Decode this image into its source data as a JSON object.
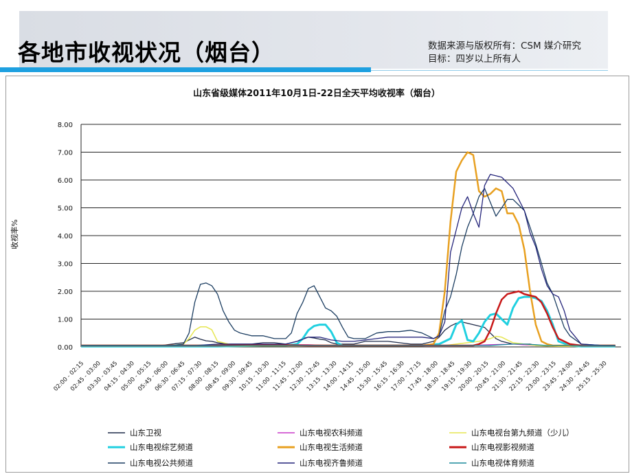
{
  "slide": {
    "title": "各地市收视状况（烟台）",
    "source_line1": "数据来源与版权所有：CSM 媒介研究",
    "source_line2": "目标：四岁以上所有人"
  },
  "chart_data": {
    "type": "line",
    "title": "山东省级媒体2011年10月1日-22日全天平均收视率（烟台）",
    "xlabel": "",
    "ylabel": "收视率%",
    "ylim": [
      0,
      8
    ],
    "yticks": [
      "0.00",
      "1.00",
      "2.00",
      "3.00",
      "4.00",
      "5.00",
      "6.00",
      "7.00",
      "8.00"
    ],
    "grid": true,
    "legend_position": "bottom",
    "categories": [
      "02:00 - 02:15",
      "02:45 - 03:00",
      "03:30 - 03:45",
      "04:15 - 04:30",
      "05:00 - 05:15",
      "05:45 - 06:00",
      "06:30 - 06:45",
      "07:15 - 07:30",
      "08:00 - 08:15",
      "08:45 - 09:00",
      "09:30 - 09:45",
      "10:15 - 10:30",
      "11:00 - 11:15",
      "11:45 - 12:00",
      "12:30 - 12:45",
      "13:15 - 13:30",
      "14:00 - 14:15",
      "14:45 - 15:00",
      "15:30 - 15:45",
      "16:15 - 16:30",
      "17:00 - 17:15",
      "17:45 - 18:00",
      "18:30 - 18:45",
      "19:15 - 19:30",
      "20:00 - 20:15",
      "20:45 - 21:00",
      "21:30 - 21:45",
      "22:15 - 22:30",
      "23:00 - 23:15",
      "23:45 - 24:00",
      "24:30 - 24:45",
      "25:15 - 25:30"
    ],
    "x_range_hours": [
      2.0,
      25.75
    ],
    "series": [
      {
        "name": "山东卫视",
        "color": "#1e2a48",
        "width": 1.3,
        "x": [
          2,
          2.5,
          3,
          3.5,
          4,
          4.5,
          5,
          5.5,
          6,
          6.5,
          6.75,
          7.0,
          7.25,
          7.5,
          7.75,
          8.0,
          8.25,
          8.5,
          8.75,
          9,
          9.5,
          10,
          10.5,
          11,
          11.5,
          11.75,
          12.0,
          12.25,
          12.5,
          12.75,
          13,
          13.25,
          13.5,
          14,
          14.5,
          15,
          15.5,
          16,
          16.5,
          17,
          17.5,
          17.75,
          18,
          18.25,
          18.5,
          18.75,
          19,
          19.25,
          19.5,
          19.75,
          20,
          20.25,
          20.5,
          20.75,
          21,
          21.25,
          21.5,
          21.75,
          22,
          22.25,
          22.5,
          22.75,
          23,
          23.25,
          23.5,
          23.75,
          24,
          24.5,
          25,
          25.5
        ],
        "y": [
          0.05,
          0.05,
          0.05,
          0.05,
          0.05,
          0.05,
          0.05,
          0.05,
          0.1,
          0.15,
          0.25,
          0.35,
          0.28,
          0.22,
          0.2,
          0.15,
          0.12,
          0.1,
          0.1,
          0.1,
          0.1,
          0.15,
          0.15,
          0.1,
          0.2,
          0.3,
          0.35,
          0.32,
          0.28,
          0.25,
          0.15,
          0.1,
          0.1,
          0.1,
          0.2,
          0.2,
          0.2,
          0.15,
          0.1,
          0.1,
          0.2,
          0.35,
          0.6,
          0.75,
          0.85,
          0.9,
          0.85,
          0.8,
          0.75,
          0.7,
          0.5,
          0.3,
          0.2,
          0.15,
          0.1,
          0.1,
          0.1,
          0.1,
          0.05,
          0.05,
          0.05,
          0.05,
          0.03,
          0.03,
          0.03,
          0.03,
          0.03,
          0.03,
          0.03,
          0.03
        ]
      },
      {
        "name": "山东电视农科频道",
        "color": "#c838c8",
        "width": 1.3,
        "x": [
          2,
          3,
          4,
          5,
          6,
          7,
          8,
          9,
          10,
          11,
          12,
          13,
          14,
          15,
          16,
          17,
          18,
          19,
          20,
          21,
          22,
          23,
          24,
          25,
          25.5
        ],
        "y": [
          0.02,
          0.02,
          0.02,
          0.02,
          0.03,
          0.05,
          0.05,
          0.08,
          0.1,
          0.08,
          0.08,
          0.05,
          0.05,
          0.05,
          0.05,
          0.05,
          0.05,
          0.05,
          0.08,
          0.1,
          0.05,
          0.03,
          0.02,
          0.02,
          0.02
        ]
      },
      {
        "name": "山东电视台第九频道（少儿）",
        "color": "#e6e650",
        "width": 1.5,
        "x": [
          2,
          3,
          4,
          5,
          6,
          6.5,
          6.75,
          7.0,
          7.25,
          7.5,
          7.75,
          8.0,
          8.5,
          9,
          10,
          11,
          12,
          13,
          14,
          15,
          16,
          17,
          18,
          18.5,
          19,
          19.5,
          20,
          20.25,
          20.5,
          20.75,
          21,
          21.5,
          22,
          22.5,
          23,
          24,
          25,
          25.5
        ],
        "y": [
          0.05,
          0.05,
          0.05,
          0.05,
          0.05,
          0.1,
          0.3,
          0.6,
          0.72,
          0.72,
          0.62,
          0.2,
          0.1,
          0.05,
          0.05,
          0.05,
          0.05,
          0.05,
          0.05,
          0.05,
          0.05,
          0.05,
          0.05,
          0.1,
          0.15,
          0.2,
          0.3,
          0.38,
          0.35,
          0.25,
          0.15,
          0.1,
          0.05,
          0.03,
          0.02,
          0.02,
          0.02,
          0.02
        ]
      },
      {
        "name": "山东电视综艺频道",
        "color": "#20d0e0",
        "width": 3,
        "x": [
          2,
          4,
          6,
          8,
          10,
          11,
          11.5,
          11.75,
          12.0,
          12.25,
          12.5,
          12.75,
          13.0,
          13.25,
          13.5,
          14,
          15,
          16,
          17,
          17.75,
          18.25,
          18.5,
          18.75,
          19.0,
          19.25,
          19.5,
          19.75,
          20.0,
          20.25,
          20.5,
          20.75,
          21.0,
          21.25,
          21.5,
          21.75,
          22.0,
          22.25,
          22.5,
          22.75,
          23,
          23.5,
          24,
          25,
          25.5
        ],
        "y": [
          0.02,
          0.02,
          0.02,
          0.02,
          0.05,
          0.05,
          0.1,
          0.3,
          0.6,
          0.75,
          0.8,
          0.8,
          0.55,
          0.15,
          0.05,
          0.05,
          0.05,
          0.05,
          0.05,
          0.1,
          0.3,
          0.8,
          0.95,
          0.25,
          0.2,
          0.5,
          0.9,
          1.15,
          1.2,
          1.0,
          0.8,
          1.4,
          1.75,
          1.8,
          1.8,
          1.75,
          1.65,
          1.3,
          0.8,
          0.2,
          0.05,
          0.02,
          0.02,
          0.02
        ]
      },
      {
        "name": "山东电视生活频道",
        "color": "#e8a020",
        "width": 2.5,
        "x": [
          2,
          4,
          6,
          8,
          10,
          12,
          14,
          16,
          17,
          17.5,
          17.75,
          18.0,
          18.25,
          18.5,
          18.75,
          19.0,
          19.25,
          19.5,
          19.75,
          20.0,
          20.25,
          20.5,
          20.75,
          21.0,
          21.25,
          21.5,
          21.75,
          22.0,
          22.25,
          22.5,
          22.75,
          23.0,
          23.25,
          23.5,
          24,
          25,
          25.5
        ],
        "y": [
          0.05,
          0.05,
          0.05,
          0.05,
          0.05,
          0.05,
          0.05,
          0.05,
          0.05,
          0.1,
          0.5,
          2.0,
          4.5,
          6.3,
          6.7,
          7.0,
          6.9,
          5.6,
          5.4,
          5.5,
          5.7,
          5.6,
          4.8,
          4.8,
          4.4,
          3.5,
          2.0,
          0.8,
          0.2,
          0.1,
          0.05,
          0.05,
          0.05,
          0.05,
          0.05,
          0.05,
          0.05
        ]
      },
      {
        "name": "山东电视影视频道",
        "color": "#c81818",
        "width": 2.5,
        "x": [
          2,
          4,
          6,
          8,
          10,
          12,
          14,
          16,
          17,
          18,
          18.5,
          19,
          19.25,
          19.5,
          19.75,
          20.0,
          20.25,
          20.5,
          20.75,
          21.0,
          21.25,
          21.5,
          21.75,
          22.0,
          22.25,
          22.5,
          22.75,
          23,
          23.5,
          24,
          25,
          25.5
        ],
        "y": [
          0.05,
          0.05,
          0.05,
          0.05,
          0.08,
          0.05,
          0.05,
          0.05,
          0.05,
          0.05,
          0.05,
          0.05,
          0.05,
          0.1,
          0.2,
          0.6,
          1.2,
          1.7,
          1.9,
          1.95,
          2.0,
          1.9,
          1.85,
          1.8,
          1.6,
          1.2,
          0.7,
          0.3,
          0.1,
          0.05,
          0.05,
          0.05
        ]
      },
      {
        "name": "山东电视公共频道",
        "color": "#1a3c60",
        "width": 1.3,
        "x": [
          2,
          2.5,
          3,
          4,
          5,
          6,
          6.5,
          6.75,
          7.0,
          7.25,
          7.5,
          7.75,
          8.0,
          8.25,
          8.5,
          8.75,
          9,
          9.5,
          10,
          10.5,
          11,
          11.25,
          11.5,
          11.75,
          12.0,
          12.25,
          12.5,
          12.75,
          13.0,
          13.25,
          13.5,
          13.75,
          14,
          14.5,
          15,
          15.5,
          16,
          16.5,
          17,
          17.25,
          17.5,
          17.75,
          18,
          18.25,
          18.5,
          18.75,
          19,
          19.25,
          19.5,
          19.75,
          20,
          20.25,
          20.5,
          20.75,
          21,
          21.25,
          21.5,
          21.75,
          22,
          22.25,
          22.5,
          22.75,
          23,
          23.25,
          23.5,
          24,
          25,
          25.5
        ],
        "y": [
          0.05,
          0.05,
          0.05,
          0.05,
          0.05,
          0.05,
          0.1,
          0.5,
          1.6,
          2.25,
          2.3,
          2.2,
          1.9,
          1.3,
          0.9,
          0.6,
          0.5,
          0.4,
          0.4,
          0.3,
          0.3,
          0.5,
          1.2,
          1.6,
          2.1,
          2.2,
          1.8,
          1.4,
          1.3,
          1.1,
          0.7,
          0.35,
          0.3,
          0.3,
          0.5,
          0.55,
          0.55,
          0.6,
          0.5,
          0.4,
          0.3,
          0.4,
          1.3,
          1.8,
          2.6,
          3.6,
          4.3,
          4.8,
          5.4,
          5.7,
          5.2,
          4.7,
          5.0,
          5.3,
          5.3,
          5.1,
          4.9,
          4.3,
          3.7,
          3.0,
          2.3,
          1.9,
          1.3,
          0.7,
          0.4,
          0.1,
          0.05,
          0.05
        ]
      },
      {
        "name": "山东电视齐鲁频道",
        "color": "#23237a",
        "width": 1.3,
        "x": [
          2,
          3,
          4,
          5,
          6,
          7,
          8,
          9,
          10,
          11,
          11.5,
          12,
          12.5,
          13,
          13.5,
          14,
          14.5,
          15,
          15.5,
          16,
          16.5,
          17,
          17.5,
          17.75,
          18,
          18.25,
          18.5,
          18.75,
          19.0,
          19.25,
          19.5,
          19.75,
          20.0,
          20.25,
          20.5,
          20.75,
          21.0,
          21.25,
          21.5,
          21.75,
          22.0,
          22.25,
          22.5,
          22.75,
          23.0,
          23.25,
          23.5,
          24,
          25,
          25.5
        ],
        "y": [
          0.05,
          0.05,
          0.05,
          0.05,
          0.05,
          0.05,
          0.1,
          0.1,
          0.1,
          0.1,
          0.2,
          0.35,
          0.35,
          0.25,
          0.2,
          0.2,
          0.25,
          0.3,
          0.35,
          0.35,
          0.35,
          0.35,
          0.3,
          0.4,
          0.9,
          3.4,
          4.2,
          5.0,
          5.4,
          4.8,
          4.3,
          5.8,
          6.2,
          6.15,
          6.1,
          5.9,
          5.7,
          5.3,
          4.9,
          4.1,
          3.6,
          2.8,
          2.2,
          1.9,
          1.8,
          1.3,
          0.6,
          0.1,
          0.05,
          0.05
        ]
      },
      {
        "name": "山东电视体育频道",
        "color": "#1a8a9a",
        "width": 1.3,
        "x": [
          2,
          4,
          6,
          8,
          10,
          12,
          14,
          16,
          18,
          19,
          20,
          20.5,
          21,
          21.5,
          22,
          22.5,
          23,
          24,
          25,
          25.5
        ],
        "y": [
          0.05,
          0.05,
          0.05,
          0.05,
          0.05,
          0.05,
          0.05,
          0.05,
          0.05,
          0.05,
          0.05,
          0.08,
          0.1,
          0.1,
          0.08,
          0.05,
          0.05,
          0.05,
          0.05,
          0.05
        ]
      }
    ]
  }
}
